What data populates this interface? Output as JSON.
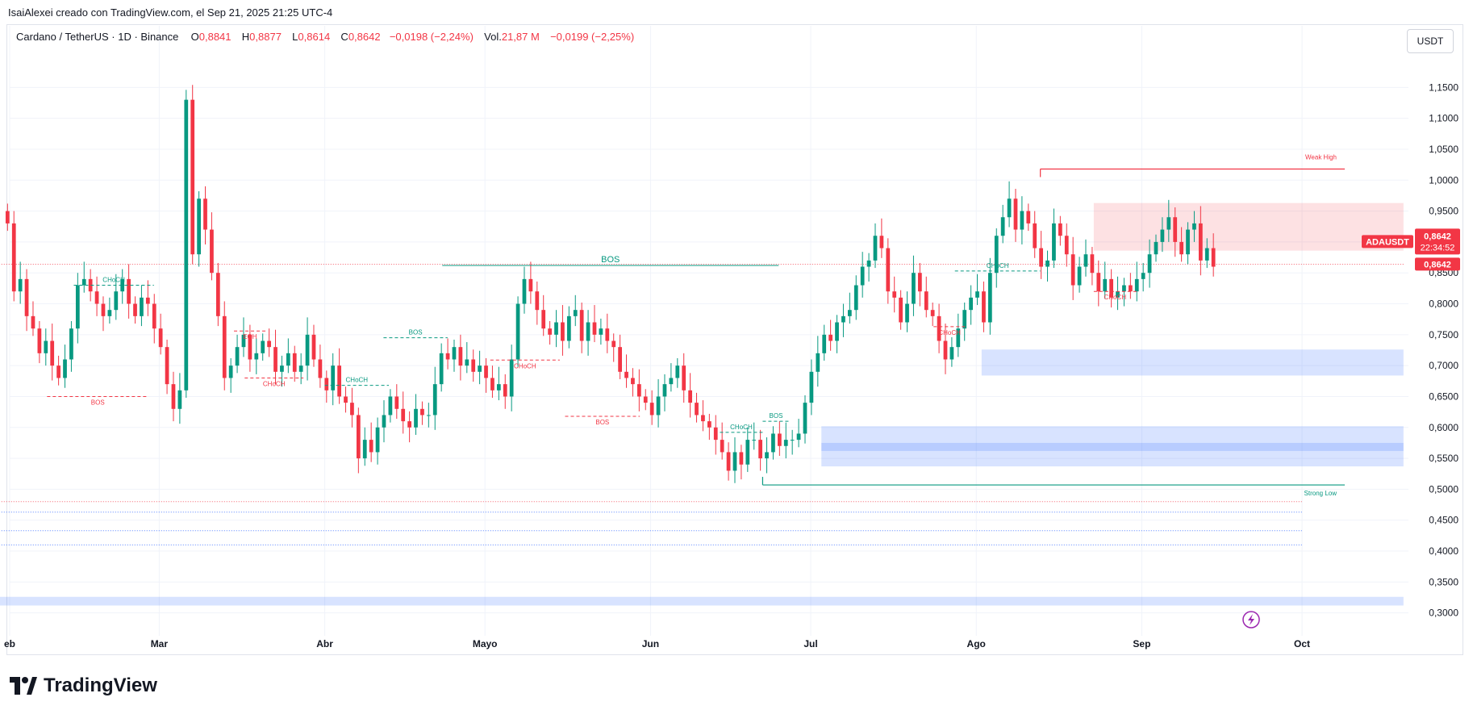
{
  "caption": "IsaiAlexei creado con TradingView.com, el Sep 21, 2025 21:25 UTC-4",
  "legend": {
    "symbol": "Cardano / TetherUS · 1D · Binance",
    "open_label": "O",
    "open": "0,8841",
    "high_label": "H",
    "high": "0,8877",
    "low_label": "L",
    "low": "0,8614",
    "close_label": "C",
    "close": "0,8642",
    "change": "−0,0198 (−2,24%)",
    "vol_label": "Vol.",
    "vol": "21,87 M",
    "vol_change": "−0,0199 (−2,25%)"
  },
  "currency_button": "USDT",
  "brand": "TradingView",
  "colors": {
    "up": "#089981",
    "down": "#f23645",
    "zone_blue": "#2962ff",
    "zone_red": "#f23645"
  },
  "chart_data": {
    "type": "candlestick",
    "symbol": "ADAUSDT",
    "ylim": [
      0.28,
      1.2
    ],
    "y_ticks": [
      "1,1500",
      "1,1000",
      "1,0500",
      "1,0000",
      "0,9500",
      "0,9000",
      "0,8500",
      "0,8000",
      "0,7500",
      "0,7000",
      "0,6500",
      "0,6000",
      "0,5500",
      "0,5000",
      "0,4500",
      "0,4000",
      "0,3500",
      "0,3000"
    ],
    "y_tick_values": [
      1.15,
      1.1,
      1.05,
      1.0,
      0.95,
      0.9,
      0.85,
      0.8,
      0.75,
      0.7,
      0.65,
      0.6,
      0.55,
      0.5,
      0.45,
      0.4,
      0.35,
      0.3
    ],
    "x_ticks": [
      "eb",
      "Mar",
      "Abr",
      "Mayo",
      "Jun",
      "Jul",
      "Ago",
      "Sep",
      "Oct"
    ],
    "x_tick_days": [
      0,
      28,
      59,
      89,
      120,
      150,
      181,
      212,
      242
    ],
    "last_price": {
      "symbol": "ADAUSDT",
      "price": "0,8642",
      "value": 0.8642,
      "countdown": "22:34:52"
    },
    "candles_closes_approx": [
      0.93,
      0.82,
      0.84,
      0.78,
      0.76,
      0.72,
      0.74,
      0.7,
      0.68,
      0.71,
      0.76,
      0.83,
      0.84,
      0.82,
      0.8,
      0.78,
      0.79,
      0.82,
      0.84,
      0.8,
      0.78,
      0.81,
      0.8,
      0.76,
      0.73,
      0.67,
      0.63,
      0.66,
      1.13,
      0.88,
      0.97,
      0.92,
      0.85,
      0.78,
      0.68,
      0.7,
      0.73,
      0.75,
      0.71,
      0.72,
      0.74,
      0.73,
      0.69,
      0.7,
      0.72,
      0.69,
      0.7,
      0.75,
      0.71,
      0.68,
      0.66,
      0.7,
      0.65,
      0.64,
      0.62,
      0.55,
      0.58,
      0.56,
      0.6,
      0.62,
      0.65,
      0.63,
      0.61,
      0.6,
      0.63,
      0.62,
      0.62,
      0.67,
      0.72,
      0.71,
      0.73,
      0.7,
      0.71,
      0.69,
      0.7,
      0.68,
      0.66,
      0.67,
      0.65,
      0.71,
      0.8,
      0.84,
      0.82,
      0.79,
      0.76,
      0.75,
      0.77,
      0.74,
      0.78,
      0.79,
      0.74,
      0.77,
      0.75,
      0.76,
      0.74,
      0.73,
      0.69,
      0.68,
      0.67,
      0.65,
      0.64,
      0.62,
      0.65,
      0.67,
      0.68,
      0.7,
      0.66,
      0.64,
      0.62,
      0.61,
      0.6,
      0.58,
      0.56,
      0.53,
      0.56,
      0.54,
      0.58,
      0.58,
      0.55,
      0.56,
      0.59,
      0.57,
      0.58,
      0.58,
      0.59,
      0.64,
      0.69,
      0.72,
      0.75,
      0.74,
      0.77,
      0.78,
      0.79,
      0.83,
      0.86,
      0.87,
      0.91,
      0.89,
      0.82,
      0.81,
      0.77,
      0.8,
      0.85,
      0.82,
      0.79,
      0.78,
      0.74,
      0.71,
      0.73,
      0.76,
      0.79,
      0.81,
      0.82,
      0.77,
      0.85,
      0.91,
      0.94,
      0.97,
      0.92,
      0.95,
      0.93,
      0.89,
      0.86,
      0.87,
      0.93,
      0.91,
      0.88,
      0.83,
      0.86,
      0.88,
      0.85,
      0.82,
      0.84,
      0.81,
      0.82,
      0.83,
      0.82,
      0.84,
      0.85,
      0.88,
      0.9,
      0.92,
      0.94,
      0.9,
      0.88,
      0.92,
      0.93,
      0.87,
      0.89,
      0.86
    ]
  },
  "annotations": [
    {
      "text": "BOS",
      "price": 0.862,
      "day0": 81,
      "day1": 144,
      "color": "up",
      "size": 11
    },
    {
      "text": "BOS",
      "price": 0.65,
      "day0": 7,
      "day1": 26,
      "color": "down",
      "size": 8
    },
    {
      "text": "CHoCH",
      "price": 0.83,
      "day0": 12,
      "day1": 27,
      "color": "up",
      "size": 8
    },
    {
      "text": "EQH",
      "price": 0.756,
      "day0": 42,
      "day1": 48,
      "color": "down",
      "size": 8
    },
    {
      "text": "CHoCH",
      "price": 0.68,
      "day0": 44,
      "day1": 55,
      "color": "down",
      "size": 8
    },
    {
      "text": "BOS",
      "price": 0.745,
      "day0": 70,
      "day1": 82,
      "color": "up",
      "size": 8
    },
    {
      "text": "CHoCH",
      "price": 0.668,
      "day0": 59,
      "day1": 71,
      "color": "up",
      "size": 8
    },
    {
      "text": "CHoCH",
      "price": 0.709,
      "day0": 90,
      "day1": 103,
      "color": "down",
      "size": 8
    },
    {
      "text": "BOS",
      "price": 0.618,
      "day0": 104,
      "day1": 118,
      "color": "down",
      "size": 8
    },
    {
      "text": "CHoCH",
      "price": 0.592,
      "day0": 133,
      "day1": 141,
      "color": "up",
      "size": 8
    },
    {
      "text": "BOS",
      "price": 0.61,
      "day0": 141,
      "day1": 146,
      "color": "up",
      "size": 8
    },
    {
      "text": "CHoCH",
      "price": 0.853,
      "day0": 177,
      "day1": 193,
      "color": "up",
      "size": 8
    },
    {
      "text": "CHoCH",
      "price": 0.763,
      "day0": 173,
      "day1": 179,
      "color": "down",
      "size": 8
    },
    {
      "text": "CHoCH",
      "price": 0.82,
      "day0": 203,
      "day1": 211,
      "color": "down",
      "size": 8
    }
  ],
  "weak_high": {
    "text": "Weak High",
    "price": 1.018,
    "day0": 193,
    "day1": 250
  },
  "strong_low": {
    "text": "Strong Low",
    "price": 0.507,
    "day0": 141,
    "day1": 250
  },
  "zones": [
    {
      "kind": "supply",
      "p_top": 0.963,
      "p_bot": 0.886,
      "day0": 203,
      "day1": 261
    },
    {
      "kind": "demand",
      "p_top": 0.726,
      "p_bot": 0.684,
      "day0": 182,
      "day1": 261
    },
    {
      "kind": "demand",
      "p_top": 0.602,
      "p_bot": 0.537,
      "day0": 152,
      "day1": 261
    },
    {
      "kind": "demand",
      "p_top": 0.575,
      "p_bot": 0.562,
      "day0": 152,
      "day1": 261
    },
    {
      "kind": "demand",
      "p_top": 0.326,
      "p_bot": 0.312,
      "day0": -2,
      "day1": 261
    }
  ],
  "dotted_levels": [
    {
      "price": 0.864,
      "color": "down",
      "day0": -2,
      "day1": 261
    },
    {
      "price": 0.48,
      "color": "down",
      "day0": -2,
      "day1": 242
    },
    {
      "price": 0.463,
      "color": "zone_blue",
      "day0": -2,
      "day1": 242
    },
    {
      "price": 0.433,
      "color": "zone_blue",
      "day0": -2,
      "day1": 242
    },
    {
      "price": 0.41,
      "color": "zone_blue",
      "day0": -2,
      "day1": 242
    }
  ]
}
